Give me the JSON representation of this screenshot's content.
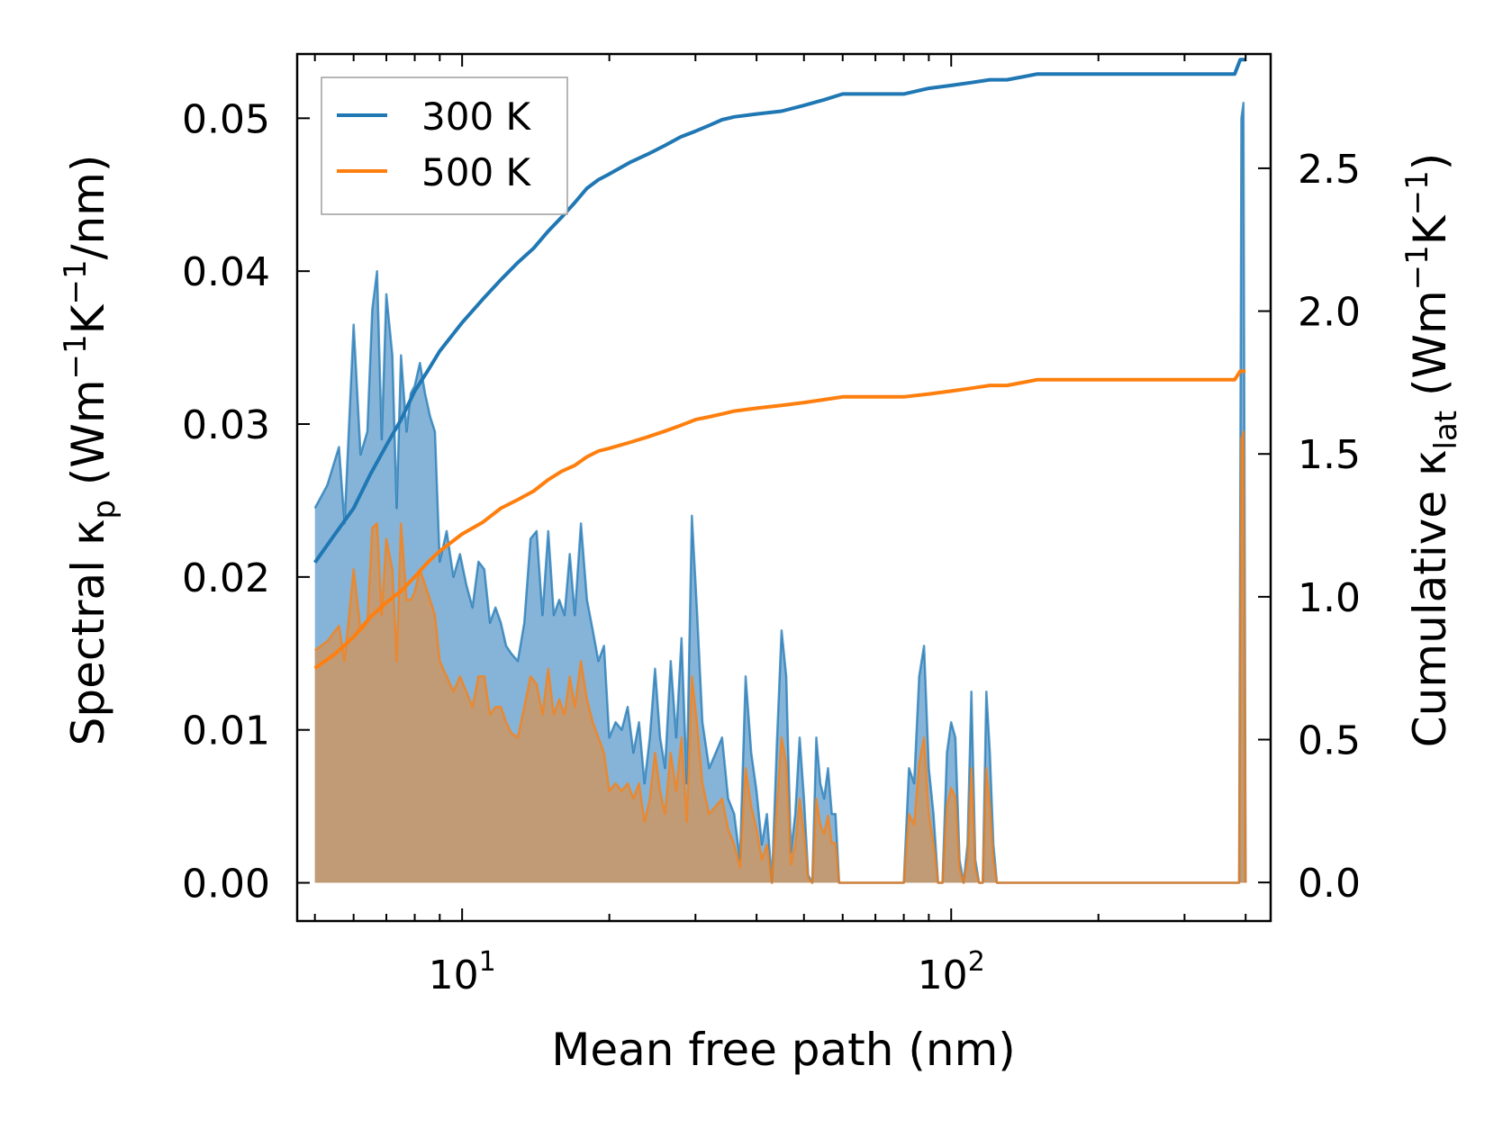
{
  "chart_data": {
    "type": "area+line",
    "xscale": "log",
    "xlim": [
      4.6,
      450
    ],
    "xlabel": "Mean free path (nm)",
    "xticks": [
      {
        "value": 10,
        "base": "10",
        "exp": "1"
      },
      {
        "value": 100,
        "base": "10",
        "exp": "2"
      }
    ],
    "left_axis": {
      "label_prefix": "Spectral κ",
      "label_sub": "p",
      "label_unit_1": " (Wm",
      "label_exp_1": "−1",
      "label_unit_2": "K",
      "label_exp_2": "−1",
      "label_unit_3": "/nm)",
      "ylim": [
        -0.0025,
        0.0542
      ],
      "ticks": [
        "0.00",
        "0.01",
        "0.02",
        "0.03",
        "0.04",
        "0.05"
      ]
    },
    "right_axis": {
      "label_prefix": "Cumulative κ",
      "label_sub": "lat",
      "label_unit_1": " (Wm",
      "label_exp_1": "−1",
      "label_unit_2": "K",
      "label_exp_2": "−1",
      "label_unit_3": ")",
      "ylim": [
        -0.135,
        2.9
      ],
      "ticks": [
        "0.0",
        "0.5",
        "1.0",
        "1.5",
        "2.0",
        "2.5"
      ]
    },
    "legend": {
      "position": "top-left",
      "entries": [
        "300 K",
        "500 K"
      ]
    },
    "colors": {
      "300K": "#1f77b4",
      "500K": "#ff7f0e",
      "fill_300K": "#7eb0d6",
      "fill_500K": "#c39a71"
    },
    "series": [
      {
        "name": "300 K",
        "axis": "left",
        "kind": "spectral",
        "x": [
          5.0,
          5.3,
          5.6,
          5.75,
          6.0,
          6.2,
          6.4,
          6.55,
          6.7,
          6.85,
          7.0,
          7.2,
          7.35,
          7.5,
          7.7,
          7.85,
          8.0,
          8.2,
          8.4,
          8.6,
          8.8,
          9.0,
          9.3,
          9.6,
          9.9,
          10.2,
          10.5,
          10.8,
          11.1,
          11.4,
          11.7,
          12.0,
          12.3,
          12.6,
          13.0,
          13.4,
          13.8,
          14.2,
          14.6,
          15.0,
          15.4,
          15.8,
          16.2,
          16.6,
          17.0,
          17.5,
          18.0,
          18.5,
          19.0,
          19.5,
          20.0,
          20.6,
          21.2,
          21.8,
          22.4,
          23.0,
          23.6,
          24.2,
          24.8,
          25.4,
          26.0,
          26.7,
          27.4,
          28.1,
          28.8,
          29.5,
          30.2,
          31.0,
          32.0,
          33.0,
          34.0,
          35.0,
          36.0,
          37.0,
          38.0,
          39.0,
          40.0,
          41.0,
          42.0,
          43.0,
          44.0,
          45.0,
          46.0,
          47.0,
          48.0,
          49.0,
          50.0,
          51.0,
          52.0,
          53.0,
          54.0,
          55.0,
          56.0,
          57.0,
          58.0,
          59.0,
          60.0,
          61.0,
          62.0,
          70.0,
          80.0,
          82.0,
          84.0,
          86.0,
          88.0,
          90.0,
          92.0,
          94.0,
          96.0,
          98.0,
          100.0,
          102.0,
          104.0,
          106.0,
          108.0,
          110.0,
          112.0,
          114.0,
          116.0,
          118.0,
          120.0,
          122.0,
          124.0,
          126.0,
          128.0,
          130.0,
          132.0,
          134.0,
          136.0,
          138.0,
          140.0,
          142.0,
          144.0,
          146.0,
          148.0,
          150.0,
          200.0,
          300.0,
          380.0,
          384.0,
          388.0,
          392.0,
          396.0,
          400.0
        ],
        "values": [
          0.0245,
          0.026,
          0.0285,
          0.0235,
          0.0365,
          0.028,
          0.0295,
          0.0375,
          0.04,
          0.029,
          0.0385,
          0.0345,
          0.0245,
          0.0345,
          0.0295,
          0.032,
          0.0325,
          0.034,
          0.032,
          0.0305,
          0.0295,
          0.021,
          0.023,
          0.02,
          0.0215,
          0.0195,
          0.018,
          0.021,
          0.0205,
          0.017,
          0.018,
          0.017,
          0.0155,
          0.015,
          0.0145,
          0.017,
          0.0225,
          0.023,
          0.0175,
          0.023,
          0.0175,
          0.0185,
          0.0175,
          0.0215,
          0.0175,
          0.0235,
          0.0185,
          0.0165,
          0.0145,
          0.0155,
          0.0095,
          0.0105,
          0.01,
          0.0115,
          0.0085,
          0.0105,
          0.0065,
          0.0095,
          0.014,
          0.0095,
          0.0075,
          0.0145,
          0.0095,
          0.016,
          0.0065,
          0.024,
          0.018,
          0.0105,
          0.0075,
          0.0085,
          0.0095,
          0.0055,
          0.0045,
          0.0015,
          0.0135,
          0.0085,
          0.006,
          0.0025,
          0.0045,
          0.0,
          0.009,
          0.0165,
          0.0135,
          0.002,
          0.0045,
          0.0095,
          0.0055,
          0.0005,
          0.0,
          0.0095,
          0.0065,
          0.0055,
          0.0075,
          0.0045,
          0.0045,
          0.0,
          0.0,
          0.0,
          0.0,
          0.0,
          0.0,
          0.0075,
          0.0065,
          0.0135,
          0.0155,
          0.0075,
          0.0045,
          0.0,
          0.0,
          0.0085,
          0.0105,
          0.0095,
          0.0015,
          0.0,
          0.0025,
          0.0125,
          0.0015,
          0.0,
          0.0,
          0.0125,
          0.0085,
          0.0025,
          0.0,
          0.0,
          0.0,
          0.0,
          0.0,
          0.0,
          0.0,
          0.0,
          0.0,
          0.0,
          0.0,
          0.0,
          0.0,
          0.0,
          0.0,
          0.0,
          0.0,
          0.0,
          0.0,
          0.05,
          0.051,
          0.0
        ]
      },
      {
        "name": "500 K",
        "axis": "left",
        "kind": "spectral",
        "x": [
          5.0,
          5.3,
          5.6,
          5.75,
          6.0,
          6.2,
          6.4,
          6.55,
          6.7,
          6.85,
          7.0,
          7.2,
          7.35,
          7.5,
          7.7,
          7.85,
          8.0,
          8.2,
          8.4,
          8.6,
          8.8,
          9.0,
          9.3,
          9.6,
          9.9,
          10.2,
          10.5,
          10.8,
          11.1,
          11.4,
          11.7,
          12.0,
          12.3,
          12.6,
          13.0,
          13.4,
          13.8,
          14.2,
          14.6,
          15.0,
          15.4,
          15.8,
          16.2,
          16.6,
          17.0,
          17.5,
          18.0,
          18.5,
          19.0,
          19.5,
          20.0,
          20.6,
          21.2,
          21.8,
          22.4,
          23.0,
          23.6,
          24.2,
          24.8,
          25.4,
          26.0,
          26.7,
          27.4,
          28.1,
          28.8,
          29.5,
          30.2,
          31.0,
          32.0,
          33.0,
          34.0,
          35.0,
          36.0,
          37.0,
          38.0,
          39.0,
          40.0,
          41.0,
          42.0,
          43.0,
          44.0,
          45.0,
          46.0,
          47.0,
          48.0,
          49.0,
          50.0,
          51.0,
          52.0,
          53.0,
          54.0,
          55.0,
          56.0,
          57.0,
          58.0,
          59.0,
          60.0,
          61.0,
          62.0,
          70.0,
          80.0,
          82.0,
          84.0,
          86.0,
          88.0,
          90.0,
          92.0,
          94.0,
          96.0,
          98.0,
          100.0,
          102.0,
          104.0,
          106.0,
          108.0,
          110.0,
          112.0,
          114.0,
          116.0,
          118.0,
          120.0,
          122.0,
          124.0,
          126.0,
          128.0,
          130.0,
          132.0,
          134.0,
          136.0,
          138.0,
          140.0,
          142.0,
          144.0,
          146.0,
          148.0,
          150.0,
          200.0,
          300.0,
          380.0,
          384.0,
          388.0,
          392.0,
          396.0,
          400.0
        ],
        "values": [
          0.0152,
          0.0158,
          0.0168,
          0.0145,
          0.0205,
          0.0165,
          0.017,
          0.0232,
          0.0235,
          0.0175,
          0.0225,
          0.0205,
          0.0145,
          0.0235,
          0.0185,
          0.0185,
          0.019,
          0.0205,
          0.0195,
          0.0185,
          0.0175,
          0.0145,
          0.0135,
          0.0125,
          0.0135,
          0.0125,
          0.0115,
          0.0135,
          0.0135,
          0.011,
          0.0115,
          0.0115,
          0.0105,
          0.0098,
          0.0095,
          0.0115,
          0.0135,
          0.013,
          0.011,
          0.014,
          0.011,
          0.012,
          0.011,
          0.0135,
          0.0115,
          0.0145,
          0.012,
          0.0105,
          0.0095,
          0.0085,
          0.006,
          0.0065,
          0.006,
          0.0065,
          0.0055,
          0.0065,
          0.004,
          0.0055,
          0.0085,
          0.006,
          0.0045,
          0.0085,
          0.006,
          0.0095,
          0.004,
          0.0135,
          0.0105,
          0.0065,
          0.0045,
          0.005,
          0.0055,
          0.0035,
          0.0025,
          0.001,
          0.0075,
          0.005,
          0.0035,
          0.0015,
          0.0025,
          0.0,
          0.005,
          0.0095,
          0.0078,
          0.0012,
          0.0025,
          0.0055,
          0.0032,
          0.0003,
          0.0,
          0.0055,
          0.0038,
          0.0032,
          0.0044,
          0.0026,
          0.0026,
          0.0,
          0.0,
          0.0,
          0.0,
          0.0,
          0.0,
          0.0045,
          0.0038,
          0.0078,
          0.0095,
          0.0045,
          0.0026,
          0.0,
          0.0,
          0.005,
          0.0062,
          0.0056,
          0.0009,
          0.0,
          0.0015,
          0.0075,
          0.0009,
          0.0,
          0.0,
          0.0075,
          0.005,
          0.0015,
          0.0,
          0.0,
          0.0,
          0.0,
          0.0,
          0.0,
          0.0,
          0.0,
          0.0,
          0.0,
          0.0,
          0.0,
          0.0,
          0.0,
          0.0,
          0.0,
          0.0,
          0.0,
          0.0,
          0.029,
          0.0295,
          0.0
        ]
      },
      {
        "name": "300 K",
        "axis": "right",
        "kind": "cumulative",
        "x": [
          5.0,
          5.5,
          6.0,
          6.5,
          7.0,
          7.5,
          8.0,
          8.5,
          9.0,
          10.0,
          11.0,
          12.0,
          13.0,
          14.0,
          15.0,
          16.0,
          17.0,
          18.0,
          19.0,
          20.0,
          22.0,
          24.0,
          26.0,
          28.0,
          30.0,
          32.0,
          34.0,
          36.0,
          40.0,
          45.0,
          50.0,
          55.0,
          60.0,
          70.0,
          80.0,
          90.0,
          100.0,
          110.0,
          120.0,
          130.0,
          140.0,
          150.0,
          200.0,
          300.0,
          380.0,
          390.0,
          400.0
        ],
        "values": [
          1.12,
          1.22,
          1.31,
          1.43,
          1.53,
          1.62,
          1.72,
          1.79,
          1.86,
          1.96,
          2.04,
          2.11,
          2.17,
          2.22,
          2.28,
          2.33,
          2.38,
          2.43,
          2.46,
          2.48,
          2.52,
          2.55,
          2.58,
          2.61,
          2.63,
          2.65,
          2.67,
          2.68,
          2.69,
          2.7,
          2.72,
          2.74,
          2.76,
          2.76,
          2.76,
          2.78,
          2.79,
          2.8,
          2.81,
          2.81,
          2.82,
          2.83,
          2.83,
          2.83,
          2.83,
          2.88,
          2.88
        ]
      },
      {
        "name": "500 K",
        "axis": "right",
        "kind": "cumulative",
        "x": [
          5.0,
          5.5,
          6.0,
          6.5,
          7.0,
          7.5,
          8.0,
          8.5,
          9.0,
          10.0,
          11.0,
          12.0,
          13.0,
          14.0,
          15.0,
          16.0,
          17.0,
          18.0,
          19.0,
          20.0,
          22.0,
          24.0,
          26.0,
          28.0,
          30.0,
          32.0,
          34.0,
          36.0,
          40.0,
          45.0,
          50.0,
          55.0,
          60.0,
          70.0,
          80.0,
          90.0,
          100.0,
          110.0,
          120.0,
          130.0,
          140.0,
          150.0,
          200.0,
          300.0,
          380.0,
          390.0,
          400.0
        ],
        "values": [
          0.75,
          0.8,
          0.86,
          0.93,
          0.98,
          1.02,
          1.07,
          1.12,
          1.16,
          1.22,
          1.26,
          1.31,
          1.34,
          1.37,
          1.41,
          1.44,
          1.46,
          1.49,
          1.51,
          1.52,
          1.54,
          1.56,
          1.58,
          1.6,
          1.62,
          1.63,
          1.64,
          1.65,
          1.66,
          1.67,
          1.68,
          1.69,
          1.7,
          1.7,
          1.7,
          1.71,
          1.72,
          1.73,
          1.74,
          1.74,
          1.75,
          1.76,
          1.76,
          1.76,
          1.76,
          1.79,
          1.79
        ]
      }
    ]
  }
}
